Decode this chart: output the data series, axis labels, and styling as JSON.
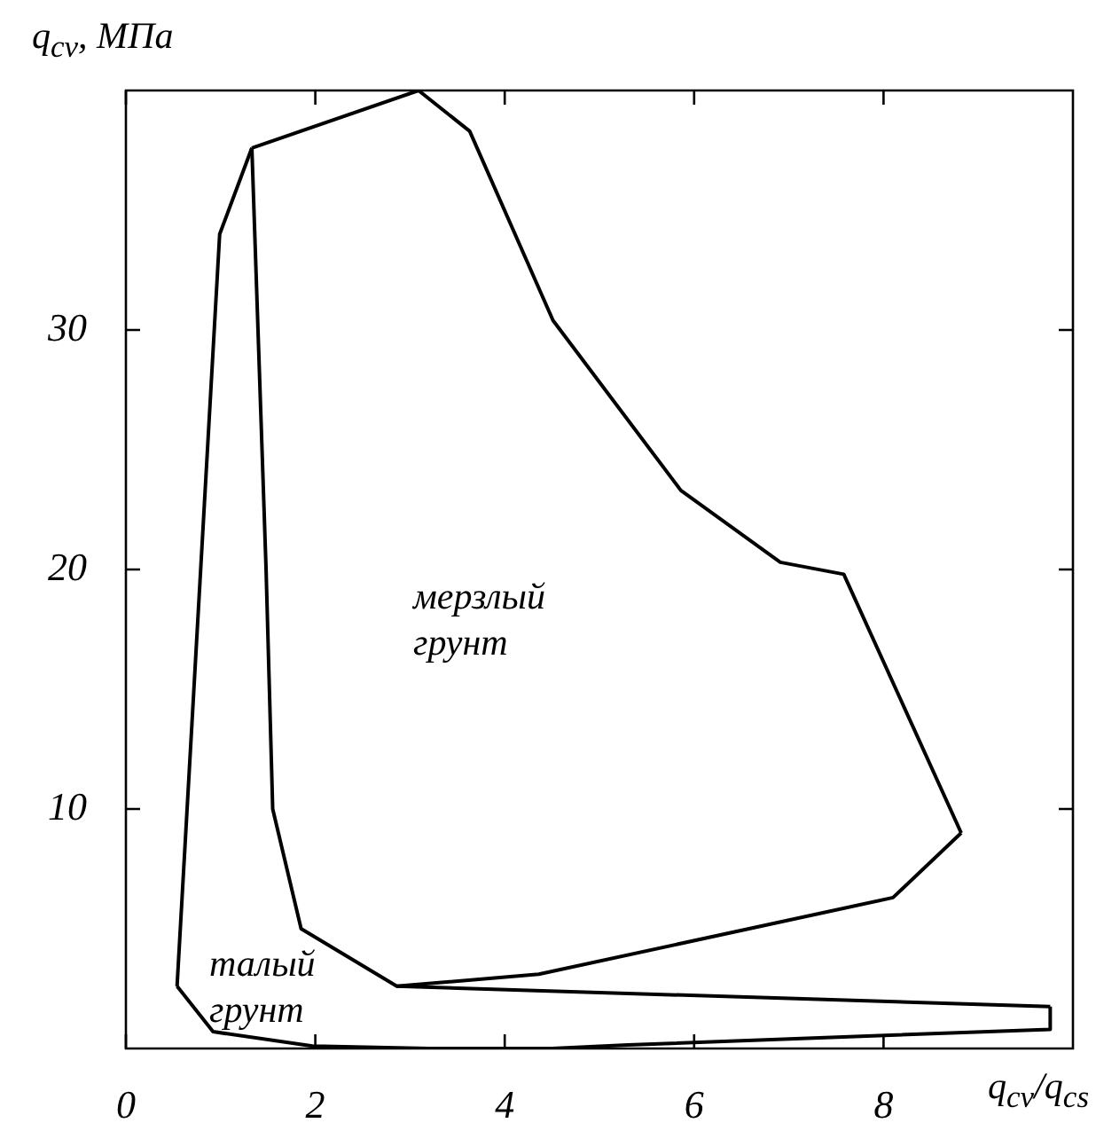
{
  "chart_data": {
    "type": "line",
    "xlabel": "q$_{cv}$/q$_{cs}$",
    "ylabel": "q$_{cv}$, МПа",
    "xlim": [
      0,
      10
    ],
    "ylim": [
      0,
      40
    ],
    "xticks": [
      0,
      2,
      4,
      6,
      8
    ],
    "yticks": [
      10,
      20,
      30
    ],
    "grid": false,
    "legend": false,
    "marker": "none",
    "line_style": "solid",
    "series": [
      {
        "color": "#000000",
        "x": [
          1.33,
          3.09,
          3.63,
          4.51,
          5.86,
          6.91,
          7.58,
          8.82
        ],
        "values": [
          37.6,
          40,
          38.3,
          30.4,
          23.3,
          20.3,
          19.8,
          9.0
        ]
      },
      {
        "color": "#000000",
        "x": [
          1.33,
          1.48,
          1.55,
          1.85,
          2.86,
          4.36,
          8.1,
          8.82
        ],
        "values": [
          37.6,
          20,
          10.0,
          5.0,
          2.6,
          3.1,
          6.3,
          9.0
        ]
      },
      {
        "color": "#000000",
        "x": [
          0.54,
          0.99,
          1.33
        ],
        "values": [
          2.6,
          34,
          37.6
        ]
      },
      {
        "color": "#000000",
        "x": [
          0.54,
          0.92,
          1.97,
          3.2,
          4.5,
          5.3,
          9.76,
          9.76
        ],
        "values": [
          2.6,
          0.7,
          0.1,
          0,
          0,
          0.15,
          0.8,
          1.75
        ]
      },
      {
        "color": "#000000",
        "x": [
          2.86,
          9.76
        ],
        "values": [
          2.6,
          1.75
        ]
      }
    ],
    "annotations": [
      "мерзлый грунт",
      "талый грунт"
    ]
  }
}
